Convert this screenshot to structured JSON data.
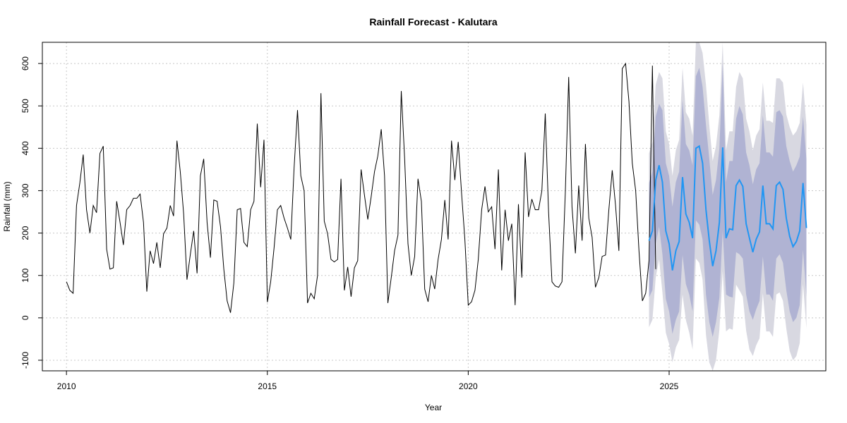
{
  "chart_data": {
    "type": "line",
    "title": "Rainfall Forecast - Kalutara",
    "xlabel": "Year",
    "ylabel": "Rainfall (mm)",
    "xlim": [
      2009.4,
      2028.9
    ],
    "ylim": [
      -125,
      650
    ],
    "x_ticks": [
      2010,
      2015,
      2020,
      2025
    ],
    "y_ticks": [
      -100,
      0,
      100,
      200,
      300,
      400,
      500,
      600
    ],
    "grid": true,
    "colors": {
      "observed": "#000000",
      "forecast": "#2196F3",
      "pi80": "#B0B3D3",
      "pi95": "#D8D8E1",
      "grid": "#c8c8c8"
    },
    "observed": {
      "start": 2010.0,
      "step": 0.08333333,
      "values": [
        85,
        65,
        58,
        265,
        318,
        385,
        255,
        200,
        265,
        248,
        388,
        405,
        162,
        115,
        118,
        275,
        225,
        172,
        255,
        265,
        282,
        282,
        292,
        225,
        62,
        158,
        128,
        178,
        118,
        198,
        212,
        265,
        240,
        418,
        345,
        245,
        90,
        150,
        205,
        105,
        335,
        375,
        225,
        142,
        278,
        275,
        215,
        115,
        40,
        12,
        82,
        255,
        258,
        178,
        168,
        255,
        275,
        458,
        308,
        420,
        37,
        85,
        165,
        255,
        265,
        235,
        212,
        185,
        355,
        490,
        335,
        300,
        35,
        58,
        45,
        100,
        530,
        228,
        198,
        138,
        132,
        138,
        328,
        65,
        120,
        50,
        118,
        135,
        350,
        290,
        232,
        285,
        345,
        382,
        445,
        335,
        35,
        95,
        158,
        195,
        535,
        375,
        175,
        100,
        145,
        328,
        275,
        68,
        38,
        100,
        68,
        138,
        185,
        278,
        185,
        418,
        325,
        415,
        295,
        185,
        30,
        38,
        65,
        138,
        255,
        310,
        250,
        262,
        162,
        350,
        112,
        255,
        182,
        222,
        30,
        268,
        95,
        390,
        238,
        280,
        255,
        255,
        300,
        482,
        250,
        85,
        75,
        72,
        85,
        295,
        568,
        262,
        152,
        312,
        182,
        410,
        235,
        190,
        72,
        95,
        145,
        148,
        255,
        348,
        265,
        158,
        588,
        600,
        510,
        365,
        300,
        158,
        40,
        58,
        135,
        595,
        115
      ]
    },
    "forecast": {
      "start": 2024.5,
      "step": 0.08333333,
      "mean": [
        182,
        205,
        325,
        360,
        320,
        205,
        175,
        112,
        158,
        180,
        332,
        245,
        225,
        188,
        400,
        405,
        365,
        255,
        182,
        122,
        158,
        225,
        402,
        188,
        210,
        208,
        312,
        325,
        310,
        222,
        188,
        155,
        185,
        203,
        312,
        222,
        222,
        210,
        312,
        320,
        303,
        235,
        192,
        168,
        180,
        205,
        318,
        212
      ],
      "lo80": [
        48,
        65,
        175,
        215,
        150,
        45,
        15,
        -38,
        -5,
        15,
        148,
        80,
        55,
        15,
        230,
        220,
        185,
        55,
        -10,
        -45,
        -10,
        48,
        205,
        55,
        50,
        48,
        155,
        150,
        140,
        55,
        15,
        -5,
        20,
        40,
        145,
        55,
        55,
        40,
        140,
        150,
        130,
        65,
        15,
        -10,
        0,
        30,
        160,
        50
      ],
      "hi80": [
        318,
        345,
        475,
        505,
        490,
        365,
        335,
        262,
        320,
        345,
        515,
        410,
        395,
        360,
        570,
        590,
        545,
        455,
        375,
        290,
        325,
        400,
        600,
        320,
        370,
        370,
        470,
        500,
        480,
        390,
        360,
        315,
        350,
        365,
        478,
        390,
        390,
        380,
        485,
        490,
        475,
        405,
        370,
        345,
        360,
        380,
        475,
        375
      ],
      "lo95": [
        -22,
        -5,
        95,
        138,
        60,
        -35,
        -62,
        -105,
        -70,
        -52,
        55,
        -5,
        -35,
        -75,
        140,
        130,
        90,
        -40,
        -105,
        -135,
        -100,
        -28,
        110,
        -32,
        -25,
        -28,
        78,
        65,
        50,
        -30,
        -75,
        -90,
        -65,
        -48,
        58,
        -32,
        -32,
        -45,
        55,
        60,
        40,
        -25,
        -78,
        -100,
        -90,
        -60,
        80,
        -25
      ],
      "hi95": [
        388,
        415,
        550,
        580,
        565,
        440,
        410,
        335,
        395,
        420,
        590,
        485,
        470,
        430,
        650,
        665,
        625,
        550,
        455,
        370,
        405,
        478,
        690,
        395,
        440,
        440,
        545,
        580,
        565,
        470,
        440,
        395,
        430,
        445,
        555,
        465,
        465,
        460,
        565,
        565,
        555,
        480,
        450,
        430,
        440,
        460,
        555,
        455
      ]
    }
  }
}
